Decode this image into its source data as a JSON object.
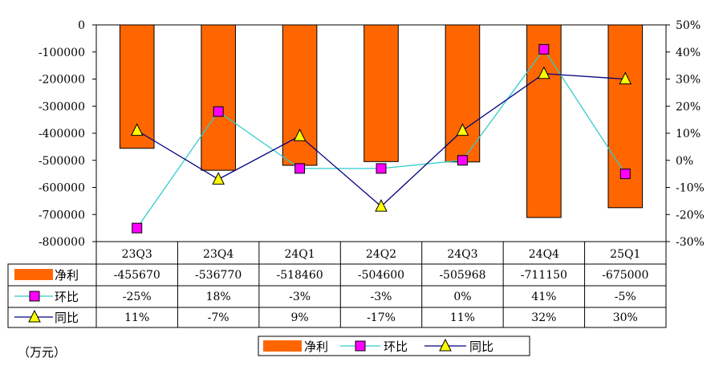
{
  "chart_data": {
    "type": "bar",
    "categories": [
      "23Q3",
      "23Q4",
      "24Q1",
      "24Q2",
      "24Q3",
      "24Q4",
      "25Q1"
    ],
    "series": [
      {
        "name": "净利",
        "type": "bar",
        "axis": "left",
        "values": [
          -455670,
          -536770,
          -518460,
          -504600,
          -505968,
          -711150,
          -675000
        ],
        "labels": [
          "-455670",
          "-536770",
          "-518460",
          "-504600",
          "-505968",
          "-711150",
          "-675000"
        ],
        "color": "#ff6600"
      },
      {
        "name": "环比",
        "type": "line",
        "axis": "right",
        "values": [
          -25,
          18,
          -3,
          -3,
          0,
          41,
          -5
        ],
        "labels": [
          "-25%",
          "18%",
          "-3%",
          "-3%",
          "0%",
          "41%",
          "-5%"
        ],
        "color": "#33cccc",
        "marker": "square",
        "marker_color": "#ff00ff"
      },
      {
        "name": "同比",
        "type": "line",
        "axis": "right",
        "values": [
          11,
          -7,
          9,
          -17,
          11,
          32,
          30
        ],
        "labels": [
          "11%",
          "-7%",
          "9%",
          "-17%",
          "11%",
          "32%",
          "30%"
        ],
        "color": "#000080",
        "marker": "triangle",
        "marker_color": "#ffff00"
      }
    ],
    "y_left": {
      "range": [
        -800000,
        0
      ],
      "ticks": [
        "0",
        "-100000",
        "-200000",
        "-300000",
        "-400000",
        "-500000",
        "-600000",
        "-700000",
        "-800000"
      ]
    },
    "y_right": {
      "range": [
        -30,
        50
      ],
      "ticks": [
        "50%",
        "40%",
        "30%",
        "20%",
        "10%",
        "0%",
        "-10%",
        "-20%",
        "-30%"
      ]
    },
    "grid": false,
    "legend": "bottom-center",
    "data_table": true,
    "unit": "（万元）"
  }
}
